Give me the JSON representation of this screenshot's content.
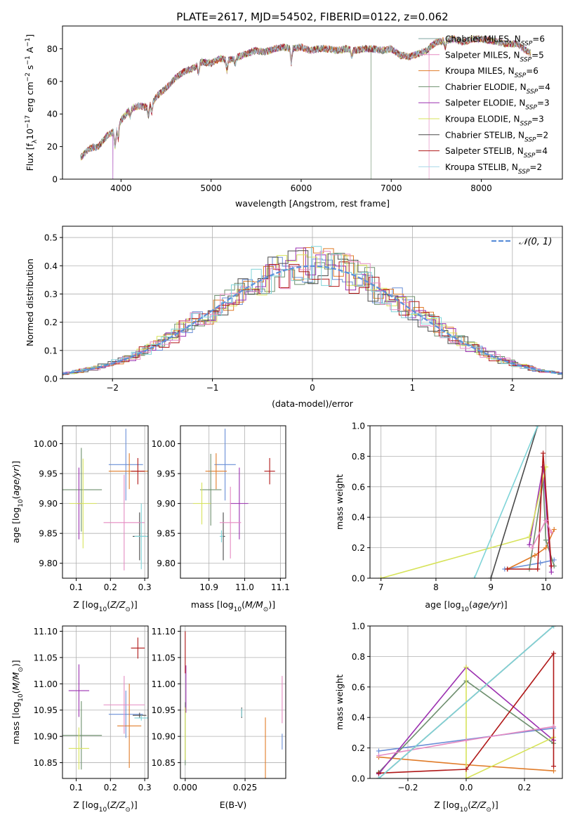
{
  "title": "PLATE=2617, MJD=54502, FIBERID=0122, z=0.062",
  "colors": [
    "#6a8fd7",
    "#e07b28",
    "#6e8f6e",
    "#9b30b0",
    "#d7e35a",
    "#4a4a4a",
    "#b01818",
    "#e58ac2",
    "#7fd4d8"
  ],
  "chart_data": [
    {
      "id": "spectrum",
      "type": "line",
      "title": "PLATE=2617, MJD=54502, FIBERID=0122, z=0.062",
      "xlabel": "wavelength [Angstrom, rest frame]",
      "ylabel": "Flux [f_λ 10^-17 erg cm^-2 s^-1 A^-1]",
      "xlim": [
        3350,
        8900
      ],
      "ylim": [
        0,
        94
      ],
      "xticks": [
        4000,
        5000,
        6000,
        7000,
        8000
      ],
      "yticks": [
        0,
        20,
        40,
        60,
        80
      ],
      "legend_position": "top-right",
      "series": [
        {
          "name": "Chabrier MILES, N_SSP=6",
          "color": "#7fa6a0"
        },
        {
          "name": "Salpeter MILES, N_SSP=5",
          "color": "#e58ac2"
        },
        {
          "name": "Kroupa MILES, N_SSP=6",
          "color": "#e07b28"
        },
        {
          "name": "Chabrier ELODIE, N_SSP=4",
          "color": "#6e8f6e"
        },
        {
          "name": "Salpeter ELODIE, N_SSP=3",
          "color": "#9b30b0"
        },
        {
          "name": "Kroupa ELODIE, N_SSP=3",
          "color": "#d7e35a"
        },
        {
          "name": "Chabrier STELIB, N_SSP=2",
          "color": "#4a4a4a"
        },
        {
          "name": "Salpeter STELIB, N_SSP=4",
          "color": "#b01818"
        },
        {
          "name": "Kroupa STELIB, N_SSP=2",
          "color": "#a8d8e8"
        }
      ],
      "continuum": {
        "x": [
          3550,
          3650,
          3750,
          3850,
          3950,
          4000,
          4100,
          4200,
          4300,
          4400,
          4500,
          4600,
          4700,
          4800,
          4900,
          5000,
          5100,
          5200,
          5300,
          5400,
          5500,
          5600,
          5700,
          5800,
          5900,
          6000,
          6100,
          6200,
          6300,
          6400,
          6500,
          6600,
          6700,
          6800,
          6900,
          7000,
          7100,
          7200,
          7300,
          7400,
          7450,
          7500,
          7600,
          7700,
          7800,
          7900,
          8000,
          8100,
          8200,
          8300,
          8400,
          8550
        ],
        "y": [
          13,
          19,
          20,
          27,
          30,
          36,
          43,
          45,
          44,
          51,
          56,
          62,
          66,
          68,
          72,
          71,
          74,
          73,
          75,
          77,
          79,
          78,
          80,
          81,
          80,
          81,
          79,
          80,
          80,
          79,
          80,
          79,
          80,
          80,
          79,
          80,
          76,
          75,
          77,
          79,
          82,
          84,
          85,
          86,
          84,
          86,
          86,
          85,
          84,
          83,
          83,
          77
        ]
      },
      "dips": [
        {
          "series": 4,
          "x": 3910,
          "y": 0
        },
        {
          "series": 3,
          "x": 6775,
          "y": 0
        },
        {
          "series": 1,
          "x": 7420,
          "y": 0
        }
      ]
    },
    {
      "id": "residuals",
      "type": "area",
      "xlabel": "(data-model)/error",
      "ylabel": "Normed distribution",
      "xlim": [
        -2.5,
        2.5
      ],
      "ylim": [
        0,
        0.54
      ],
      "xticks": [
        -2,
        -1,
        0,
        1,
        2
      ],
      "yticks": [
        0,
        0.1,
        0.2,
        0.3,
        0.4,
        0.5
      ],
      "legend": "𝒩(0, 1)",
      "legend_position": "top-right"
    },
    {
      "id": "age-vs-Z",
      "type": "scatter",
      "xlabel": "Z [log10(Z/Z☉)]",
      "ylabel": "age  [log10(age/yr)]",
      "xlim": [
        0.06,
        0.31
      ],
      "ylim": [
        9.775,
        10.03
      ],
      "xticks": [
        0.1,
        0.2,
        0.3
      ],
      "yticks": [
        9.8,
        9.85,
        9.9,
        9.95,
        10.0
      ],
      "points": [
        {
          "color": "#6a8fd7",
          "x": 0.245,
          "xe": 0.05,
          "y": 9.965,
          "ye": 0.06
        },
        {
          "color": "#e07b28",
          "x": 0.255,
          "xe": 0.06,
          "y": 9.954,
          "ye": 0.03
        },
        {
          "color": "#6e8f6e",
          "x": 0.115,
          "xe": 0.06,
          "y": 9.923,
          "ye": 0.07
        },
        {
          "color": "#9b30b0",
          "x": 0.108,
          "xe": 0.005,
          "y": 9.9,
          "ye": 0.06
        },
        {
          "color": "#d7e35a",
          "x": 0.12,
          "xe": 0.04,
          "y": 9.9,
          "ye": 0.075
        },
        {
          "color": "#4a4a4a",
          "x": 0.285,
          "xe": 0.02,
          "y": 9.845,
          "ye": 0.04
        },
        {
          "color": "#b01818",
          "x": 0.28,
          "xe": 0.02,
          "y": 9.954,
          "ye": 0.022
        },
        {
          "color": "#e58ac2",
          "x": 0.24,
          "xe": 0.06,
          "y": 9.868,
          "ye": 0.08
        },
        {
          "color": "#7fd4d8",
          "x": 0.29,
          "xe": 0.02,
          "y": 9.845,
          "ye": 0.055
        }
      ]
    },
    {
      "id": "age-vs-mass",
      "type": "scatter",
      "xlabel": "mass [log10(M/M☉)]",
      "ylabel": "",
      "xlim": [
        10.82,
        11.115
      ],
      "ylim": [
        9.775,
        10.03
      ],
      "xticks": [
        10.9,
        11.0,
        11.1
      ],
      "yticks": [
        9.8,
        9.85,
        9.9,
        9.95,
        10.0
      ],
      "points": [
        {
          "color": "#6a8fd7",
          "x": 10.945,
          "xe": 0.03,
          "y": 9.965,
          "ye": 0.06
        },
        {
          "color": "#e07b28",
          "x": 10.92,
          "xe": 0.03,
          "y": 9.954,
          "ye": 0.03
        },
        {
          "color": "#6e8f6e",
          "x": 10.905,
          "xe": 0.03,
          "y": 9.923,
          "ye": 0.06
        },
        {
          "color": "#9b30b0",
          "x": 10.985,
          "xe": 0.025,
          "y": 9.9,
          "ye": 0.06
        },
        {
          "color": "#d7e35a",
          "x": 10.88,
          "xe": 0.025,
          "y": 9.9,
          "ye": 0.035
        },
        {
          "color": "#4a4a4a",
          "x": 10.94,
          "xe": 0.005,
          "y": 9.845,
          "ye": 0.04
        },
        {
          "color": "#b01818",
          "x": 11.07,
          "xe": 0.015,
          "y": 9.954,
          "ye": 0.022
        },
        {
          "color": "#e58ac2",
          "x": 10.96,
          "xe": 0.03,
          "y": 9.868,
          "ye": 0.06
        },
        {
          "color": "#7fd4d8",
          "x": 10.935,
          "xe": 0.005,
          "y": 9.845,
          "ye": 0.01
        }
      ]
    },
    {
      "id": "weight-vs-age",
      "type": "line",
      "xlabel": "age  [log10(age/yr)]",
      "ylabel": "mass weight",
      "xlim": [
        6.8,
        10.3
      ],
      "ylim": [
        0,
        1.0
      ],
      "xticks": [
        7,
        8,
        9,
        10
      ],
      "yticks": [
        0.0,
        0.2,
        0.4,
        0.6,
        0.8,
        1.0
      ],
      "series": [
        {
          "color": "#6a8fd7",
          "x": [
            9.25,
            9.9,
            10.15
          ],
          "y": [
            0.06,
            0.1,
            0.12
          ]
        },
        {
          "color": "#e07b28",
          "x": [
            9.3,
            9.8,
            10.0,
            10.15
          ],
          "y": [
            0.06,
            0.15,
            0.2,
            0.32
          ]
        },
        {
          "color": "#6e8f6e",
          "x": [
            9.7,
            9.95,
            10.0,
            10.15
          ],
          "y": [
            0.06,
            0.64,
            0.25,
            0.08
          ]
        },
        {
          "color": "#9b30b0",
          "x": [
            9.7,
            9.95,
            10.1
          ],
          "y": [
            0.22,
            0.73,
            0.04
          ]
        },
        {
          "color": "#d7e35a",
          "x": [
            7.0,
            9.7,
            10.0
          ],
          "y": [
            0.0,
            0.27,
            0.73
          ]
        },
        {
          "color": "#4a4a4a",
          "x": [
            9.0,
            9.85
          ],
          "y": [
            0.0,
            1.0
          ]
        },
        {
          "color": "#b01818",
          "x": [
            9.3,
            9.85,
            9.95,
            10.1
          ],
          "y": [
            0.06,
            0.06,
            0.82,
            0.08
          ]
        },
        {
          "color": "#e58ac2",
          "x": [
            9.75,
            10.0,
            10.1
          ],
          "y": [
            0.2,
            0.38,
            0.3
          ]
        },
        {
          "color": "#7fd4d8",
          "x": [
            8.7,
            9.85
          ],
          "y": [
            0.0,
            1.0
          ]
        }
      ]
    },
    {
      "id": "mass-vs-Z",
      "type": "scatter",
      "xlabel": "Z [log10(Z/Z☉)]",
      "ylabel": "mass [log10(M/M☉)]",
      "xlim": [
        0.06,
        0.31
      ],
      "ylim": [
        10.82,
        11.11
      ],
      "xticks": [
        0.1,
        0.2,
        0.3
      ],
      "yticks": [
        10.85,
        10.9,
        10.95,
        11.0,
        11.05,
        11.1
      ],
      "points": [
        {
          "color": "#6a8fd7",
          "x": 0.245,
          "xe": 0.05,
          "y": 10.942,
          "ye": 0.045
        },
        {
          "color": "#e07b28",
          "x": 0.255,
          "xe": 0.035,
          "y": 10.92,
          "ye": 0.08
        },
        {
          "color": "#6e8f6e",
          "x": 0.115,
          "xe": 0.06,
          "y": 10.902,
          "ye": 0.065
        },
        {
          "color": "#9b30b0",
          "x": 0.108,
          "xe": 0.03,
          "y": 10.987,
          "ye": 0.05
        },
        {
          "color": "#d7e35a",
          "x": 0.108,
          "xe": 0.03,
          "y": 10.877,
          "ye": 0.04
        },
        {
          "color": "#4a4a4a",
          "x": 0.285,
          "xe": 0.02,
          "y": 10.94,
          "ye": 0.005
        },
        {
          "color": "#b01818",
          "x": 0.28,
          "xe": 0.02,
          "y": 11.068,
          "ye": 0.02
        },
        {
          "color": "#e58ac2",
          "x": 0.24,
          "xe": 0.06,
          "y": 10.96,
          "ye": 0.055
        },
        {
          "color": "#7fd4d8",
          "x": 0.29,
          "xe": 0.02,
          "y": 10.935,
          "ye": 0.005
        }
      ]
    },
    {
      "id": "mass-vs-EBV",
      "type": "scatter",
      "xlabel": "E(B-V)",
      "ylabel": "",
      "xlim": [
        -0.002,
        0.042
      ],
      "ylim": [
        10.82,
        11.11
      ],
      "xticks": [
        0.0,
        0.025
      ],
      "yticks": [
        10.85,
        10.9,
        10.95,
        11.0,
        11.05,
        11.1
      ],
      "points": [
        {
          "color": "#6a8fd7",
          "x": 0.0405,
          "xe": 0,
          "y": 10.89,
          "ye": 0.015
        },
        {
          "color": "#e07b28",
          "x": 0.0335,
          "xe": 0,
          "y": 10.876,
          "ye": 0.06
        },
        {
          "color": "#6e8f6e",
          "x": 0.0,
          "xe": 0,
          "y": 10.905,
          "ye": 0.06
        },
        {
          "color": "#9b30b0",
          "x": 0.0003,
          "xe": 0,
          "y": 10.99,
          "ye": 0.045
        },
        {
          "color": "#d7e35a",
          "x": 0.0,
          "xe": 0,
          "y": 10.905,
          "ye": 0.05
        },
        {
          "color": "#4a4a4a",
          "x": 0.0236,
          "xe": 0,
          "y": 10.945,
          "ye": 0.01
        },
        {
          "color": "#b01818",
          "x": 0.0,
          "xe": 0,
          "y": 11.06,
          "ye": 0.04
        },
        {
          "color": "#e58ac2",
          "x": 0.0405,
          "xe": 0,
          "y": 10.97,
          "ye": 0.045
        },
        {
          "color": "#7fd4d8",
          "x": 0.0236,
          "xe": 0,
          "y": 10.945,
          "ye": 0.008
        }
      ]
    },
    {
      "id": "weight-vs-Z",
      "type": "line",
      "xlabel": "Z [log10(Z/Z☉)]",
      "ylabel": "mass weight",
      "xlim": [
        -0.33,
        0.33
      ],
      "ylim": [
        0,
        1.0
      ],
      "xticks": [
        -0.2,
        0.0,
        0.2
      ],
      "yticks": [
        0.0,
        0.2,
        0.4,
        0.6,
        0.8,
        1.0
      ],
      "series": [
        {
          "color": "#6a8fd7",
          "x": [
            -0.3,
            0.3
          ],
          "y": [
            0.18,
            0.33
          ]
        },
        {
          "color": "#e07b28",
          "x": [
            -0.3,
            0.0,
            0.3
          ],
          "y": [
            0.14,
            0.09,
            0.05
          ]
        },
        {
          "color": "#6e8f6e",
          "x": [
            -0.3,
            0.0,
            0.3
          ],
          "y": [
            0.04,
            0.64,
            0.23
          ]
        },
        {
          "color": "#9b30b0",
          "x": [
            -0.3,
            0.0,
            0.3
          ],
          "y": [
            0.03,
            0.73,
            0.25
          ]
        },
        {
          "color": "#d7e35a",
          "x": [
            0.0,
            0.0,
            0.3
          ],
          "y": [
            0.73,
            0.0,
            0.27
          ]
        },
        {
          "color": "#4a4a4a",
          "x": [
            -0.3,
            0.3
          ],
          "y": [
            0.0,
            1.0
          ]
        },
        {
          "color": "#b01818",
          "x": [
            -0.3,
            0.0,
            0.3,
            0.3
          ],
          "y": [
            0.035,
            0.06,
            0.82,
            0.08
          ]
        },
        {
          "color": "#e58ac2",
          "x": [
            -0.3,
            0.0,
            0.3
          ],
          "y": [
            0.15,
            0.25,
            0.34
          ]
        },
        {
          "color": "#7fd4d8",
          "x": [
            -0.3,
            0.3
          ],
          "y": [
            0.0,
            1.0
          ]
        }
      ]
    }
  ]
}
